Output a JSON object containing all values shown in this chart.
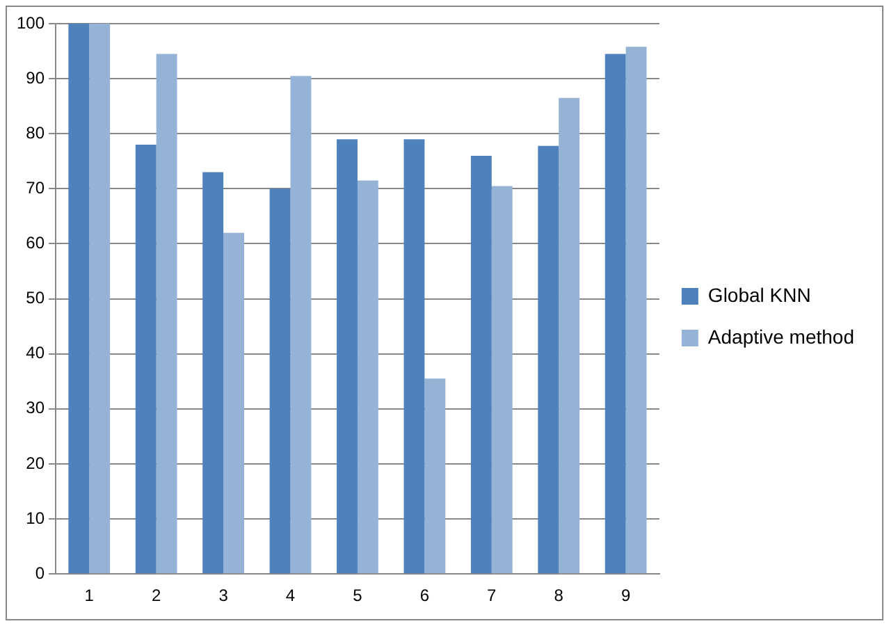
{
  "chart_data": {
    "type": "bar",
    "categories": [
      "1",
      "2",
      "3",
      "4",
      "5",
      "6",
      "7",
      "8",
      "9"
    ],
    "series": [
      {
        "name": "Global KNN",
        "color": "#4f81bd",
        "values": [
          100,
          78,
          73,
          70,
          79,
          79,
          76,
          77.8,
          94.5
        ]
      },
      {
        "name": "Adaptive method",
        "color": "#95b3d7",
        "values": [
          100,
          94.5,
          62,
          90.5,
          71.5,
          35.5,
          70.5,
          86.5,
          95.8
        ]
      }
    ],
    "ylim": [
      0,
      100
    ],
    "yticks": [
      0,
      10,
      20,
      30,
      40,
      50,
      60,
      70,
      80,
      90,
      100
    ],
    "grid": "y",
    "legend": "right"
  }
}
